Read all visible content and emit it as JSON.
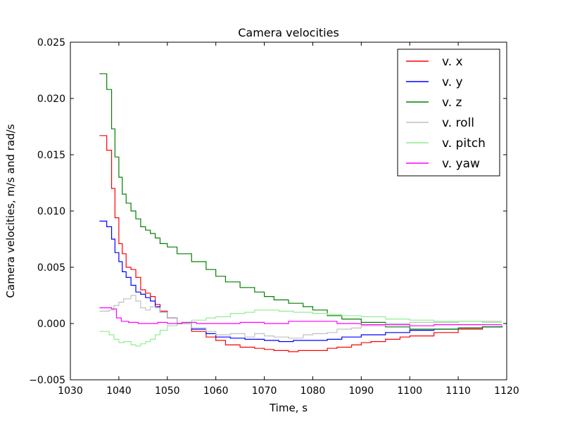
{
  "chart_data": {
    "type": "line",
    "title": "Camera velocities",
    "xlabel": "Time, s",
    "ylabel": "Camera velocities, m/s and rad/s",
    "xlim": [
      1030,
      1120
    ],
    "ylim": [
      -0.005,
      0.025
    ],
    "xticks": [
      1030,
      1040,
      1050,
      1060,
      1070,
      1080,
      1090,
      1100,
      1110,
      1120
    ],
    "yticks": [
      -0.005,
      0.0,
      0.005,
      0.01,
      0.015,
      0.02,
      0.025
    ],
    "xtick_labels": [
      "1030",
      "1040",
      "1050",
      "1060",
      "1070",
      "1080",
      "1090",
      "1100",
      "1110",
      "1120"
    ],
    "ytick_labels": [
      "−0.005",
      "0.000",
      "0.005",
      "0.010",
      "0.015",
      "0.020",
      "0.025"
    ],
    "step": true,
    "grid": false,
    "legend_position": "top-right",
    "series": [
      {
        "name": "v. x",
        "color": "#ff0000",
        "x": [
          1036,
          1037.5,
          1038.5,
          1039.2,
          1040,
          1040.7,
          1041.5,
          1042.5,
          1043.5,
          1044.5,
          1045.5,
          1046.5,
          1047.5,
          1048.5,
          1050,
          1052,
          1055,
          1058,
          1060,
          1062,
          1065,
          1068,
          1070,
          1072,
          1075,
          1077,
          1080,
          1083,
          1085,
          1088,
          1090,
          1092,
          1095,
          1098,
          1100,
          1105,
          1110,
          1115,
          1119
        ],
        "y": [
          0.0167,
          0.0154,
          0.012,
          0.0094,
          0.0071,
          0.0062,
          0.005,
          0.0048,
          0.0041,
          0.003,
          0.0027,
          0.0024,
          0.0017,
          0.0011,
          0.0005,
          0.0,
          -0.0007,
          -0.0012,
          -0.0015,
          -0.0019,
          -0.0021,
          -0.0022,
          -0.0023,
          -0.0024,
          -0.0025,
          -0.0024,
          -0.0024,
          -0.0022,
          -0.0021,
          -0.0019,
          -0.0017,
          -0.0016,
          -0.0014,
          -0.0012,
          -0.0011,
          -0.0008,
          -0.0005,
          -0.0003,
          -0.0002
        ]
      },
      {
        "name": "v. y",
        "color": "#0000ff",
        "x": [
          1036,
          1037.5,
          1038.5,
          1039.2,
          1040,
          1040.7,
          1041.5,
          1042.5,
          1043.5,
          1044.5,
          1045.5,
          1046.5,
          1047.5,
          1048.5,
          1050,
          1052,
          1055,
          1058,
          1060,
          1063,
          1066,
          1070,
          1073,
          1076,
          1080,
          1083,
          1086,
          1090,
          1095,
          1100,
          1105,
          1110,
          1115,
          1119
        ],
        "y": [
          0.0091,
          0.0086,
          0.0075,
          0.0063,
          0.0055,
          0.0046,
          0.0041,
          0.0034,
          0.0028,
          0.0026,
          0.0023,
          0.002,
          0.0015,
          0.001,
          0.0005,
          0.0,
          -0.0005,
          -0.0009,
          -0.0012,
          -0.0013,
          -0.0014,
          -0.0015,
          -0.0016,
          -0.0015,
          -0.0015,
          -0.0014,
          -0.0012,
          -0.001,
          -0.0008,
          -0.0006,
          -0.0005,
          -0.0004,
          -0.0003,
          -0.0002
        ]
      },
      {
        "name": "v. z",
        "color": "#008000",
        "x": [
          1036,
          1037.5,
          1038.5,
          1039.2,
          1040,
          1040.7,
          1041.5,
          1042.5,
          1043.5,
          1044.5,
          1045.5,
          1046.5,
          1047.5,
          1048.5,
          1050,
          1052,
          1055,
          1058,
          1060,
          1062,
          1065,
          1068,
          1070,
          1072,
          1075,
          1078,
          1080,
          1083,
          1086,
          1090,
          1095,
          1100,
          1105,
          1110,
          1115,
          1119
        ],
        "y": [
          0.0222,
          0.0208,
          0.0173,
          0.0148,
          0.013,
          0.0115,
          0.0107,
          0.01,
          0.0093,
          0.0086,
          0.0083,
          0.008,
          0.0076,
          0.0071,
          0.0068,
          0.0062,
          0.0055,
          0.0048,
          0.0042,
          0.0037,
          0.0032,
          0.0028,
          0.0024,
          0.0021,
          0.0018,
          0.0015,
          0.0012,
          0.0007,
          0.0004,
          0.0001,
          -0.0003,
          -0.0005,
          -0.0005,
          -0.0004,
          -0.0003,
          -0.0002
        ]
      },
      {
        "name": "v. roll",
        "color": "#c0c0c0",
        "x": [
          1036,
          1038,
          1039,
          1040,
          1041,
          1042.5,
          1043.5,
          1044.5,
          1045.5,
          1046.5,
          1047.5,
          1048.5,
          1050,
          1052,
          1055,
          1058,
          1060,
          1063,
          1066,
          1068,
          1070,
          1072,
          1075,
          1078,
          1080,
          1083,
          1085,
          1088,
          1090,
          1095,
          1100,
          1105,
          1110,
          1115,
          1119
        ],
        "y": [
          0.0011,
          0.0012,
          0.0016,
          0.0019,
          0.0022,
          0.0025,
          0.002,
          0.0014,
          0.0012,
          0.0015,
          0.0014,
          0.001,
          0.0005,
          0.0,
          -0.0004,
          -0.0007,
          -0.001,
          -0.0009,
          -0.0012,
          -0.0009,
          -0.0011,
          -0.0012,
          -0.0013,
          -0.001,
          -0.0009,
          -0.0008,
          -0.0005,
          -0.0004,
          -0.0002,
          0.0,
          0.0001,
          0.0001,
          0.0002,
          0.0002,
          0.0002
        ]
      },
      {
        "name": "v. pitch",
        "color": "#90ee90",
        "x": [
          1036,
          1038,
          1039,
          1040,
          1041,
          1042.5,
          1043.5,
          1044.5,
          1045.5,
          1046.5,
          1047.5,
          1048.5,
          1050,
          1052,
          1055,
          1058,
          1060,
          1063,
          1066,
          1068,
          1070,
          1073,
          1076,
          1080,
          1083,
          1086,
          1090,
          1095,
          1100,
          1105,
          1110,
          1115,
          1119
        ],
        "y": [
          -0.0007,
          -0.001,
          -0.0014,
          -0.0017,
          -0.0016,
          -0.0019,
          -0.002,
          -0.0018,
          -0.0016,
          -0.0014,
          -0.001,
          -0.0006,
          -0.0002,
          0.0,
          0.0003,
          0.0005,
          0.0006,
          0.0009,
          0.001,
          0.0012,
          0.0012,
          0.0011,
          0.001,
          0.0009,
          0.0008,
          0.0007,
          0.0006,
          0.0004,
          0.0003,
          0.0002,
          0.0002,
          0.0001,
          0.0001
        ]
      },
      {
        "name": "v. yaw",
        "color": "#ff00ff",
        "x": [
          1036,
          1038.5,
          1039.5,
          1040.5,
          1042,
          1044,
          1046,
          1048,
          1050,
          1053,
          1056,
          1060,
          1065,
          1070,
          1075,
          1080,
          1085,
          1090,
          1095,
          1100,
          1105,
          1110,
          1115,
          1119
        ],
        "y": [
          0.0014,
          0.0013,
          0.0005,
          0.0002,
          0.0001,
          0.0,
          0.0,
          0.0001,
          0.0,
          0.0001,
          0.0,
          0.0,
          0.0001,
          0.0,
          0.0002,
          0.0002,
          0.0,
          -0.0001,
          -0.0001,
          -0.0002,
          -0.0001,
          -0.0001,
          -0.0001,
          -0.0001
        ]
      }
    ]
  }
}
